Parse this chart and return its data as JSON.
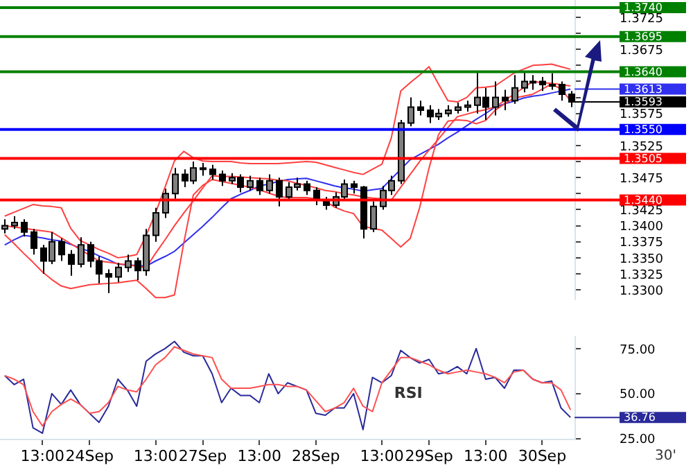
{
  "chart_data": [
    {
      "type": "candlestick",
      "color": "#000000",
      "tick_labels": "y",
      "ylim": [
        1.3285,
        1.3752
      ],
      "colors": [
        "#808080",
        "#808080",
        "#000000",
        "#000000",
        "#000000",
        "#808080",
        "#000000",
        "#000000",
        "#808080",
        "#000000",
        "#000000",
        "#000000",
        "#808080",
        "#808080",
        "#000000",
        "#808080",
        "#808080",
        "#808080",
        "#808080",
        "#000000",
        "#808080",
        "#000000",
        "#000000",
        "#000000",
        "#808080",
        "#000000",
        "#808080",
        "#000000",
        "#808080",
        "#000000",
        "#808080",
        "#808080",
        "#000000",
        "#000000",
        "#000000",
        "#808080",
        "#808080",
        "#000000",
        "#000000",
        "#808080",
        "#808080",
        "#808080",
        "#808080",
        "#808080",
        "#000000",
        "#000000",
        "#808080",
        "#808080",
        "#808080",
        "#808080",
        "#808080",
        "#000000",
        "#808080",
        "#000000",
        "#808080",
        "#808080",
        "#808080",
        "#000000",
        "#808080",
        "#000000",
        "#000000"
      ],
      "categories": [
        null,
        null,
        null,
        null,
        null,
        null,
        null,
        null,
        null,
        null,
        null,
        null,
        null,
        null,
        null,
        null,
        null,
        null,
        null,
        null,
        null,
        null,
        null,
        null,
        null,
        null,
        null,
        null,
        null,
        null,
        null,
        null,
        null,
        null,
        null,
        null,
        null,
        null,
        null,
        null,
        null,
        null,
        null,
        null,
        null,
        null,
        null,
        null,
        null,
        null,
        null,
        null,
        null,
        null,
        null,
        null,
        null,
        null,
        null,
        null,
        null
      ],
      "yticks": [
        1.3725,
        {
          "value": 1.37,
          "label": null
        },
        1.3675,
        {
          "value": 1.365,
          "label": null
        },
        {
          "value": 1.3625,
          "label": null
        },
        {
          "value": 1.36,
          "label": null
        },
        1.3575,
        {
          "value": 1.355,
          "label": null
        },
        1.3525,
        {
          "value": 1.35,
          "label": null
        },
        1.3475,
        {
          "value": 1.345,
          "label": null
        },
        1.3425,
        {
          "value": 1.34,
          "label": "1.3400"
        },
        1.3375,
        {
          "value": 1.335,
          "label": "1.3350"
        },
        1.3325,
        {
          "value": 1.33,
          "label": "1.3300"
        }
      ],
      "ohlc": [
        [
          1.3395,
          1.341,
          1.3388,
          1.34
        ],
        [
          1.34,
          1.3415,
          1.3395,
          1.3405
        ],
        [
          1.3405,
          1.341,
          1.3383,
          1.339
        ],
        [
          1.339,
          1.3395,
          1.3355,
          1.3365
        ],
        [
          1.3365,
          1.337,
          1.3325,
          1.3345
        ],
        [
          1.3345,
          1.339,
          1.334,
          1.3375
        ],
        [
          1.3375,
          1.338,
          1.3345,
          1.3355
        ],
        [
          1.3355,
          1.3362,
          1.3322,
          1.334
        ],
        [
          1.334,
          1.3382,
          1.3335,
          1.337
        ],
        [
          1.337,
          1.3375,
          1.3335,
          1.3345
        ],
        [
          1.3345,
          1.3352,
          1.331,
          1.3325
        ],
        [
          1.3325,
          1.3332,
          1.3295,
          1.332
        ],
        [
          1.332,
          1.3342,
          1.3312,
          1.3335
        ],
        [
          1.3335,
          1.3355,
          1.3328,
          1.3345
        ],
        [
          1.3345,
          1.335,
          1.3315,
          1.333
        ],
        [
          1.333,
          1.3395,
          1.3322,
          1.3385
        ],
        [
          1.3385,
          1.3428,
          1.3375,
          1.342
        ],
        [
          1.342,
          1.3458,
          1.3412,
          1.345
        ],
        [
          1.345,
          1.349,
          1.3442,
          1.348
        ],
        [
          1.348,
          1.3488,
          1.346,
          1.347
        ],
        [
          1.347,
          1.35,
          1.3465,
          1.349
        ],
        [
          1.349,
          1.3498,
          1.3478,
          1.3488
        ],
        [
          1.3488,
          1.3495,
          1.3472,
          1.348
        ],
        [
          1.348,
          1.3486,
          1.3462,
          1.347
        ],
        [
          1.347,
          1.3482,
          1.3465,
          1.3475
        ],
        [
          1.3475,
          1.348,
          1.3452,
          1.346
        ],
        [
          1.346,
          1.3478,
          1.3455,
          1.347
        ],
        [
          1.347,
          1.3475,
          1.3448,
          1.3455
        ],
        [
          1.3455,
          1.348,
          1.345,
          1.347
        ],
        [
          1.347,
          1.3475,
          1.343,
          1.3445
        ],
        [
          1.3445,
          1.3468,
          1.344,
          1.346
        ],
        [
          1.346,
          1.3475,
          1.3455,
          1.3465
        ],
        [
          1.3465,
          1.347,
          1.3448,
          1.3455
        ],
        [
          1.3455,
          1.346,
          1.3432,
          1.344
        ],
        [
          1.344,
          1.3445,
          1.3425,
          1.3432
        ],
        [
          1.3432,
          1.3452,
          1.3428,
          1.3445
        ],
        [
          1.3445,
          1.3472,
          1.344,
          1.3465
        ],
        [
          1.3465,
          1.347,
          1.345,
          1.346
        ],
        [
          1.346,
          1.3462,
          1.338,
          1.3395
        ],
        [
          1.3395,
          1.3438,
          1.339,
          1.343
        ],
        [
          1.343,
          1.3462,
          1.3425,
          1.3455
        ],
        [
          1.3455,
          1.3478,
          1.3448,
          1.347
        ],
        [
          1.347,
          1.3565,
          1.3465,
          1.356
        ],
        [
          1.356,
          1.36,
          1.3555,
          1.3585
        ],
        [
          1.3585,
          1.3595,
          1.3572,
          1.358
        ],
        [
          1.358,
          1.3588,
          1.356,
          1.357
        ],
        [
          1.357,
          1.3582,
          1.3565,
          1.3575
        ],
        [
          1.3575,
          1.3588,
          1.357,
          1.358
        ],
        [
          1.358,
          1.3592,
          1.3575,
          1.3585
        ],
        [
          1.3585,
          1.3595,
          1.3578,
          1.3588
        ],
        [
          1.3588,
          1.364,
          1.3575,
          1.36
        ],
        [
          1.36,
          1.3615,
          1.3565,
          1.3585
        ],
        [
          1.3585,
          1.3625,
          1.3572,
          1.36
        ],
        [
          1.36,
          1.3612,
          1.358,
          1.3595
        ],
        [
          1.3595,
          1.3635,
          1.359,
          1.3615
        ],
        [
          1.3615,
          1.364,
          1.3608,
          1.3625
        ],
        [
          1.3625,
          1.3635,
          1.3612,
          1.3625
        ],
        [
          1.3625,
          1.3632,
          1.361,
          1.362
        ],
        [
          1.362,
          1.3638,
          1.3612,
          1.362
        ],
        [
          1.362,
          1.3625,
          1.3595,
          1.3605
        ],
        [
          1.3605,
          1.361,
          1.3585,
          1.3593
        ]
      ],
      "series": [
        {
          "type": "line",
          "color": "#ff4040",
          "values": [
            1.3415,
            1.3421,
            1.3427,
            1.3433,
            1.3431,
            1.343,
            1.3428,
            1.3396,
            1.3377,
            1.337,
            1.3363,
            1.3357,
            1.335,
            1.3352,
            1.3355,
            1.3385,
            1.342,
            1.346,
            1.3501,
            1.3516,
            1.3506,
            1.3501,
            1.35,
            1.35,
            1.35,
            1.3498,
            1.3497,
            1.3497,
            1.3497,
            1.3497,
            1.3498,
            1.3499,
            1.35,
            1.3499,
            1.3495,
            1.3491,
            1.3487,
            1.3483,
            1.348,
            1.3488,
            1.3496,
            1.3537,
            1.361,
            1.3623,
            1.3635,
            1.3648,
            1.3621,
            1.3595,
            1.3593,
            1.36,
            1.3615,
            1.3616,
            1.3618,
            1.3628,
            1.3638,
            1.3644,
            1.365,
            1.3651,
            1.3652,
            1.3648,
            1.3644
          ]
        },
        {
          "type": "line",
          "color": "#ff4040",
          "values": [
            1.34,
            1.3398,
            1.3396,
            1.3394,
            1.3392,
            1.339,
            1.3381,
            1.3372,
            1.3363,
            1.3354,
            1.3345,
            1.3343,
            1.3341,
            1.3339,
            1.3337,
            1.3335,
            1.3357,
            1.3378,
            1.34,
            1.342,
            1.3439,
            1.3459,
            1.3478,
            1.3477,
            1.3477,
            1.3476,
            1.3475,
            1.3474,
            1.3473,
            1.3471,
            1.347,
            1.3466,
            1.3463,
            1.3459,
            1.3455,
            1.3453,
            1.345,
            1.3448,
            1.3445,
            1.3443,
            1.3442,
            1.344,
            1.346,
            1.348,
            1.35,
            1.3518,
            1.3535,
            1.3553,
            1.357,
            1.3574,
            1.3578,
            1.3581,
            1.3585,
            1.3595,
            1.3605,
            1.3615,
            1.3625,
            1.3623,
            1.3622,
            1.362,
            1.3618
          ]
        },
        {
          "type": "line",
          "color": "#ff4040",
          "values": [
            1.3386,
            1.3372,
            1.3357,
            1.3343,
            1.3328,
            1.3316,
            1.3306,
            1.3302,
            1.3305,
            1.3308,
            1.3309,
            1.331,
            1.3311,
            1.3313,
            1.3315,
            1.3302,
            1.3288,
            1.3288,
            1.3292,
            1.3374,
            1.3448,
            1.3463,
            1.3472,
            1.3469,
            1.3466,
            1.3463,
            1.346,
            1.3456,
            1.3451,
            1.3446,
            1.3444,
            1.3444,
            1.3444,
            1.3442,
            1.3438,
            1.3429,
            1.3423,
            1.3419,
            1.3399,
            1.3396,
            1.3393,
            1.338,
            1.3367,
            1.338,
            1.3428,
            1.349,
            1.3542,
            1.3563,
            1.3565,
            1.3564,
            1.3559,
            1.3564,
            1.358,
            1.359,
            1.3599,
            1.3602,
            1.3605,
            1.3613,
            1.3621,
            1.3613,
            1.3595
          ]
        },
        {
          "type": "line",
          "color": "#3030ee",
          "values": [
            1.337,
            1.3378,
            1.3385,
            1.3383,
            1.3381,
            1.3378,
            1.3376,
            1.3371,
            1.3365,
            1.336,
            1.3353,
            1.3347,
            1.334,
            1.3339,
            1.3338,
            1.3337,
            1.3345,
            1.3352,
            1.336,
            1.3373,
            1.3386,
            1.3399,
            1.3413,
            1.3428,
            1.3442,
            1.3449,
            1.3455,
            1.3462,
            1.3465,
            1.3469,
            1.3472,
            1.3473,
            1.3474,
            1.347,
            1.3466,
            1.3462,
            1.3459,
            1.3457,
            1.3454,
            1.3456,
            1.3458,
            1.3473,
            1.3488,
            1.3503,
            1.3511,
            1.3519,
            1.3527,
            1.3537,
            1.3546,
            1.3556,
            1.3566,
            1.3575,
            1.3585,
            1.359,
            1.3594,
            1.3599,
            1.3602,
            1.3604,
            1.3607,
            1.361,
            1.3613
          ],
          "value_labels": [
            null,
            null,
            null,
            null,
            null,
            null,
            null,
            null,
            null,
            null,
            null,
            null,
            null,
            null,
            null,
            null,
            null,
            null,
            null,
            null,
            null,
            null,
            null,
            null,
            null,
            null,
            null,
            null,
            null,
            null,
            null,
            null,
            null,
            null,
            null,
            null,
            null,
            null,
            null,
            null,
            null,
            null,
            null,
            null,
            null,
            null,
            null,
            null,
            null,
            null,
            null,
            null,
            null,
            null,
            null,
            null,
            null,
            null,
            null,
            null,
            "1.3613"
          ]
        }
      ],
      "ref_lines": [
        {
          "axis": "y",
          "value": 1.374,
          "label": "1.3740",
          "color": "#008000"
        },
        {
          "axis": "y",
          "value": 1.3695,
          "label": "1.3695",
          "color": "#008000"
        },
        {
          "axis": "y",
          "value": 1.364,
          "label": "1.3640",
          "color": "#008000"
        },
        {
          "axis": "y",
          "value": 1.355,
          "label": "1.3550",
          "color": "#0000ff"
        },
        {
          "axis": "y",
          "value": 1.3505,
          "label": "1.3505",
          "color": "#ff0000"
        },
        {
          "axis": "y",
          "value": 1.344,
          "label": "1.3440",
          "color": "#ff0000"
        }
      ],
      "annotations": [
        "1.3593"
      ]
    },
    {
      "type": "line",
      "ylim": [
        24.5,
        81.5
      ],
      "categories": [
        null,
        null,
        null,
        null,
        "13:00",
        null,
        null,
        null,
        null,
        "24Sep",
        null,
        null,
        null,
        null,
        null,
        null,
        "13:00",
        null,
        null,
        null,
        null,
        "27Sep",
        null,
        null,
        null,
        null,
        null,
        "13:00",
        null,
        null,
        null,
        null,
        null,
        "28Sep",
        null,
        null,
        null,
        null,
        null,
        null,
        "13:00",
        null,
        null,
        null,
        null,
        "29Sep",
        null,
        null,
        null,
        null,
        null,
        "13:00",
        null,
        null,
        null,
        null,
        null,
        "30Sep",
        null,
        null,
        null
      ],
      "yticks": [
        {
          "value": 75,
          "label": "75.00"
        },
        {
          "value": 50,
          "label": "50.00"
        },
        {
          "value": 25,
          "label": "25.00"
        }
      ],
      "series": [
        {
          "color": "#ff5050",
          "values": [
            60,
            58,
            55,
            40,
            32,
            40,
            44,
            47,
            44,
            39,
            40,
            45,
            54,
            52,
            51,
            58,
            66,
            70,
            76,
            74,
            72,
            71,
            70,
            58,
            53,
            53,
            53,
            54,
            55,
            55,
            54,
            54,
            52,
            46,
            40,
            42,
            45,
            53,
            43,
            40,
            56,
            63,
            70,
            70,
            68,
            66,
            63,
            61,
            62,
            63,
            62,
            61,
            59,
            56,
            62,
            63,
            58,
            56,
            56,
            52,
            41
          ]
        },
        {
          "color": "#2a2a9a",
          "values": [
            60,
            55,
            58,
            31,
            28,
            50,
            44,
            52,
            44,
            39,
            34,
            43,
            58,
            52,
            43,
            68,
            72,
            75,
            79,
            73,
            71,
            71,
            61,
            45,
            53,
            49,
            49,
            45,
            61,
            50,
            56,
            54,
            52,
            39,
            38,
            42,
            42,
            50,
            30,
            59,
            56,
            60,
            74,
            70,
            67,
            69,
            61,
            62,
            65,
            61,
            75,
            58,
            59,
            53,
            63,
            63,
            58,
            56,
            57,
            42,
            36.76
          ],
          "value_labels": [
            null,
            null,
            null,
            null,
            null,
            null,
            null,
            null,
            null,
            null,
            null,
            null,
            null,
            null,
            null,
            null,
            null,
            null,
            null,
            null,
            null,
            null,
            null,
            null,
            null,
            null,
            null,
            null,
            null,
            null,
            null,
            null,
            null,
            null,
            null,
            null,
            null,
            null,
            null,
            null,
            null,
            null,
            null,
            null,
            null,
            null,
            null,
            null,
            null,
            null,
            null,
            null,
            null,
            null,
            null,
            null,
            null,
            null,
            null,
            null,
            "36.76"
          ]
        }
      ],
      "annotations": [
        "RSI",
        "30'"
      ]
    }
  ]
}
